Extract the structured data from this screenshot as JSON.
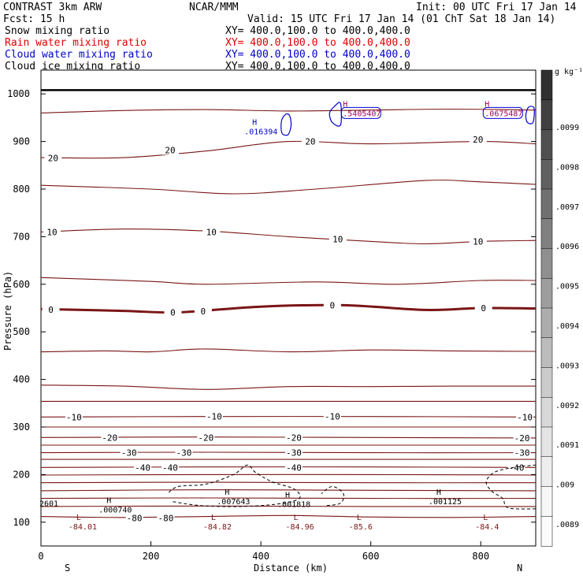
{
  "header": {
    "model": "CONTRAST  3km ARW",
    "org": "NCAR/MMM",
    "init": "Init: 00 UTC Fri 17 Jan 14",
    "fcst": "Fcst:   15 h",
    "valid": "Valid: 15 UTC Fri 17 Jan 14 (01 ChT Sat 18 Jan 14)"
  },
  "fields": [
    {
      "name": "Snow mixing ratio",
      "xy": "XY= 400.0,100.0 to 400.0,400.0",
      "color": "#000000"
    },
    {
      "name": "Rain water mixing ratio",
      "xy": "XY= 400.0,100.0 to 400.0,400.0",
      "color": "#e00000"
    },
    {
      "name": "Cloud water mixing ratio",
      "xy": "XY= 400.0,100.0 to 400.0,400.0",
      "color": "#0000d0"
    },
    {
      "name": "Cloud ice mixing ratio",
      "xy": "XY= 400.0,100.0 to 400.0,400.0",
      "color": "#000000"
    }
  ],
  "colors": {
    "temperature": "#7a1515",
    "cloud_ice": "#000000",
    "cloud_water": "#0000d0",
    "rain": "#a00060"
  },
  "chart_data": {
    "type": "cross-section contour",
    "xlabel": "Distance (km)",
    "ylabel": "Pressure (hPa)",
    "xlim": [
      0,
      900
    ],
    "ylim": [
      1050,
      50
    ],
    "x_ticks": [
      0,
      200,
      400,
      600,
      800
    ],
    "y_ticks": [
      100,
      200,
      300,
      400,
      500,
      600,
      700,
      800,
      900,
      1000
    ],
    "end_labels": {
      "left": "S",
      "right": "N"
    },
    "colorbar": {
      "unit": "g kg⁻¹",
      "tick_labels": [
        ".0099",
        ".0098",
        ".0097",
        ".0096",
        ".0095",
        ".0094",
        ".0093",
        ".0092",
        ".0091",
        ".009",
        ".0089"
      ],
      "colors": [
        "#303030",
        "#404040",
        "#505050",
        "#606060",
        "#707070",
        "#808080",
        "#8f8f8f",
        "#9e9e9e",
        "#adadad",
        "#bcbcbc",
        "#cbcbcb",
        "#d8d8d8",
        "#e4e4e4",
        "#eeeeee",
        "#f6f6f6",
        "#fbfbfb"
      ]
    },
    "surface_pressure": 1008,
    "temperature_contours": [
      {
        "value": "-80",
        "levels": [
          {
            "x": 0,
            "p": 112
          },
          {
            "x": 150,
            "p": 110
          },
          {
            "x": 300,
            "p": 112
          },
          {
            "x": 450,
            "p": 114
          },
          {
            "x": 600,
            "p": 111
          },
          {
            "x": 750,
            "p": 110
          },
          {
            "x": 900,
            "p": 112
          }
        ],
        "labels": [
          {
            "x": 170,
            "p": 109
          },
          {
            "x": 227,
            "p": 109
          }
        ]
      },
      {
        "value": "",
        "levels": [
          {
            "x": 0,
            "p": 133
          },
          {
            "x": 300,
            "p": 134
          },
          {
            "x": 600,
            "p": 133
          },
          {
            "x": 900,
            "p": 133
          }
        ]
      },
      {
        "value": "",
        "levels": [
          {
            "x": 0,
            "p": 150
          },
          {
            "x": 300,
            "p": 151
          },
          {
            "x": 600,
            "p": 150
          },
          {
            "x": 900,
            "p": 150
          }
        ]
      },
      {
        "value": "",
        "levels": [
          {
            "x": 0,
            "p": 166
          },
          {
            "x": 300,
            "p": 168
          },
          {
            "x": 600,
            "p": 167
          },
          {
            "x": 900,
            "p": 166
          }
        ]
      },
      {
        "value": "",
        "levels": [
          {
            "x": 0,
            "p": 183
          },
          {
            "x": 300,
            "p": 184
          },
          {
            "x": 600,
            "p": 183
          },
          {
            "x": 900,
            "p": 183
          }
        ]
      },
      {
        "value": "",
        "levels": [
          {
            "x": 0,
            "p": 199
          },
          {
            "x": 300,
            "p": 200
          },
          {
            "x": 600,
            "p": 200
          },
          {
            "x": 900,
            "p": 199
          }
        ]
      },
      {
        "value": "-40",
        "levels": [
          {
            "x": 0,
            "p": 215
          },
          {
            "x": 300,
            "p": 216
          },
          {
            "x": 600,
            "p": 216
          },
          {
            "x": 900,
            "p": 215
          }
        ],
        "labels": [
          {
            "x": 185,
            "p": 215
          },
          {
            "x": 235,
            "p": 215
          },
          {
            "x": 460,
            "p": 215
          },
          {
            "x": 865,
            "p": 215
          }
        ]
      },
      {
        "value": "",
        "levels": [
          {
            "x": 0,
            "p": 232
          },
          {
            "x": 900,
            "p": 232
          }
        ]
      },
      {
        "value": "-30",
        "levels": [
          {
            "x": 0,
            "p": 246
          },
          {
            "x": 300,
            "p": 247
          },
          {
            "x": 600,
            "p": 246
          },
          {
            "x": 900,
            "p": 246
          }
        ],
        "labels": [
          {
            "x": 160,
            "p": 246
          },
          {
            "x": 260,
            "p": 246
          },
          {
            "x": 460,
            "p": 246
          },
          {
            "x": 875,
            "p": 246
          }
        ]
      },
      {
        "value": "",
        "levels": [
          {
            "x": 0,
            "p": 262
          },
          {
            "x": 900,
            "p": 262
          }
        ]
      },
      {
        "value": "-20",
        "levels": [
          {
            "x": 0,
            "p": 278
          },
          {
            "x": 300,
            "p": 279
          },
          {
            "x": 600,
            "p": 278
          },
          {
            "x": 900,
            "p": 277
          }
        ],
        "labels": [
          {
            "x": 125,
            "p": 278
          },
          {
            "x": 300,
            "p": 278
          },
          {
            "x": 460,
            "p": 278
          },
          {
            "x": 875,
            "p": 277
          }
        ]
      },
      {
        "value": "",
        "levels": [
          {
            "x": 0,
            "p": 300
          },
          {
            "x": 900,
            "p": 300
          }
        ]
      },
      {
        "value": "-10",
        "levels": [
          {
            "x": 0,
            "p": 321
          },
          {
            "x": 300,
            "p": 322
          },
          {
            "x": 600,
            "p": 322
          },
          {
            "x": 900,
            "p": 321
          }
        ],
        "labels": [
          {
            "x": 60,
            "p": 321
          },
          {
            "x": 315,
            "p": 322
          },
          {
            "x": 530,
            "p": 322
          },
          {
            "x": 880,
            "p": 321
          }
        ]
      },
      {
        "value": "",
        "levels": [
          {
            "x": 0,
            "p": 354
          },
          {
            "x": 900,
            "p": 354
          }
        ]
      },
      {
        "value": "",
        "levels": [
          {
            "x": 0,
            "p": 388
          },
          {
            "x": 150,
            "p": 386
          },
          {
            "x": 300,
            "p": 379
          },
          {
            "x": 450,
            "p": 385
          },
          {
            "x": 600,
            "p": 385
          },
          {
            "x": 750,
            "p": 386
          },
          {
            "x": 900,
            "p": 386
          }
        ]
      },
      {
        "value": "",
        "levels": [
          {
            "x": 0,
            "p": 458
          },
          {
            "x": 120,
            "p": 460
          },
          {
            "x": 200,
            "p": 458
          },
          {
            "x": 300,
            "p": 464
          },
          {
            "x": 450,
            "p": 458
          },
          {
            "x": 600,
            "p": 462
          },
          {
            "x": 750,
            "p": 460
          },
          {
            "x": 900,
            "p": 459
          }
        ]
      },
      {
        "value": "0",
        "bold": true,
        "levels": [
          {
            "x": 0,
            "p": 548
          },
          {
            "x": 150,
            "p": 544
          },
          {
            "x": 250,
            "p": 541
          },
          {
            "x": 400,
            "p": 553
          },
          {
            "x": 550,
            "p": 556
          },
          {
            "x": 700,
            "p": 546
          },
          {
            "x": 800,
            "p": 550
          },
          {
            "x": 900,
            "p": 549
          }
        ],
        "labels": [
          {
            "x": 18,
            "p": 547
          },
          {
            "x": 240,
            "p": 541
          },
          {
            "x": 295,
            "p": 543
          },
          {
            "x": 530,
            "p": 556
          },
          {
            "x": 805,
            "p": 550
          }
        ]
      },
      {
        "value": "",
        "levels": [
          {
            "x": 0,
            "p": 614
          },
          {
            "x": 200,
            "p": 606
          },
          {
            "x": 300,
            "p": 600
          },
          {
            "x": 500,
            "p": 605
          },
          {
            "x": 650,
            "p": 600
          },
          {
            "x": 800,
            "p": 608
          },
          {
            "x": 900,
            "p": 608
          }
        ]
      },
      {
        "value": "10",
        "levels": [
          {
            "x": 0,
            "p": 710
          },
          {
            "x": 150,
            "p": 716
          },
          {
            "x": 300,
            "p": 712
          },
          {
            "x": 450,
            "p": 700
          },
          {
            "x": 600,
            "p": 690
          },
          {
            "x": 700,
            "p": 685
          },
          {
            "x": 800,
            "p": 690
          },
          {
            "x": 900,
            "p": 692
          }
        ],
        "labels": [
          {
            "x": 20,
            "p": 710
          },
          {
            "x": 310,
            "p": 710
          },
          {
            "x": 540,
            "p": 695
          },
          {
            "x": 795,
            "p": 690
          }
        ]
      },
      {
        "value": "",
        "levels": [
          {
            "x": 0,
            "p": 808
          },
          {
            "x": 200,
            "p": 800
          },
          {
            "x": 350,
            "p": 790
          },
          {
            "x": 500,
            "p": 800
          },
          {
            "x": 700,
            "p": 818
          },
          {
            "x": 800,
            "p": 815
          },
          {
            "x": 900,
            "p": 810
          }
        ]
      },
      {
        "value": "20",
        "levels": [
          {
            "x": 0,
            "p": 866
          },
          {
            "x": 150,
            "p": 866
          },
          {
            "x": 300,
            "p": 880
          },
          {
            "x": 450,
            "p": 900
          },
          {
            "x": 600,
            "p": 895
          },
          {
            "x": 800,
            "p": 900
          },
          {
            "x": 900,
            "p": 895
          }
        ],
        "labels": [
          {
            "x": 22,
            "p": 865
          },
          {
            "x": 235,
            "p": 882
          },
          {
            "x": 490,
            "p": 900
          },
          {
            "x": 795,
            "p": 904
          }
        ]
      },
      {
        "value": "",
        "levels": [
          {
            "x": 0,
            "p": 960
          },
          {
            "x": 150,
            "p": 965
          },
          {
            "x": 300,
            "p": 967
          },
          {
            "x": 450,
            "p": 964
          },
          {
            "x": 600,
            "p": 966
          },
          {
            "x": 750,
            "p": 968
          },
          {
            "x": 900,
            "p": 966
          }
        ]
      }
    ],
    "highs_lows": [
      {
        "type": "L",
        "value": "-84.01",
        "x": 50,
        "p": 105
      },
      {
        "type": "L",
        "value": "-84.82",
        "x": 295,
        "p": 105
      },
      {
        "type": "L",
        "value": "-84.96",
        "x": 445,
        "p": 105
      },
      {
        "type": "L",
        "value": "-85.6",
        "x": 560,
        "p": 105
      },
      {
        "type": "L",
        "value": "-84.4",
        "x": 790,
        "p": 105
      },
      {
        "type": "H",
        "value": ".000740",
        "x": 105,
        "p": 140
      },
      {
        "type": "H",
        "value": ".007643",
        "x": 320,
        "p": 158
      },
      {
        "type": "H",
        "value": ".001818",
        "x": 430,
        "p": 152
      },
      {
        "type": "H",
        "value": ".001125",
        "x": 705,
        "p": 158
      },
      {
        "type": "H",
        "value": ".016394",
        "x": 370,
        "p": 935
      }
    ],
    "edge_label": {
      "value": "2601",
      "x": 3,
      "p": 140
    },
    "cloud_ice_regions": [
      {
        "points": [
          {
            "x": 240,
            "p": 143
          },
          {
            "x": 290,
            "p": 135
          },
          {
            "x": 360,
            "p": 133
          },
          {
            "x": 430,
            "p": 138
          },
          {
            "x": 470,
            "p": 150
          },
          {
            "x": 460,
            "p": 170
          },
          {
            "x": 420,
            "p": 185
          },
          {
            "x": 390,
            "p": 205
          },
          {
            "x": 375,
            "p": 220
          },
          {
            "x": 350,
            "p": 200
          },
          {
            "x": 300,
            "p": 180
          },
          {
            "x": 250,
            "p": 175
          },
          {
            "x": 230,
            "p": 160
          }
        ]
      },
      {
        "points": [
          {
            "x": 520,
            "p": 135
          },
          {
            "x": 545,
            "p": 140
          },
          {
            "x": 550,
            "p": 160
          },
          {
            "x": 530,
            "p": 175
          },
          {
            "x": 510,
            "p": 160
          }
        ]
      },
      {
        "points": [
          {
            "x": 900,
            "p": 128
          },
          {
            "x": 850,
            "p": 130
          },
          {
            "x": 840,
            "p": 150
          },
          {
            "x": 820,
            "p": 165
          },
          {
            "x": 810,
            "p": 185
          },
          {
            "x": 825,
            "p": 205
          },
          {
            "x": 860,
            "p": 215
          },
          {
            "x": 900,
            "p": 220
          }
        ]
      }
    ],
    "cloud_water_regions": [
      {
        "points": [
          {
            "x": 440,
            "p": 915
          },
          {
            "x": 450,
            "p": 915
          },
          {
            "x": 455,
            "p": 935
          },
          {
            "x": 452,
            "p": 955
          },
          {
            "x": 445,
            "p": 957
          },
          {
            "x": 438,
            "p": 945
          },
          {
            "x": 437,
            "p": 925
          }
        ]
      },
      {
        "points": [
          {
            "x": 545,
            "p": 935
          },
          {
            "x": 530,
            "p": 940
          },
          {
            "x": 525,
            "p": 960
          },
          {
            "x": 535,
            "p": 975
          },
          {
            "x": 545,
            "p": 980
          }
        ]
      },
      {
        "points": [
          {
            "x": 885,
            "p": 940
          },
          {
            "x": 895,
            "p": 940
          },
          {
            "x": 897,
            "p": 970
          },
          {
            "x": 887,
            "p": 972
          },
          {
            "x": 882,
            "p": 955
          }
        ]
      }
    ],
    "surface_clusters": [
      {
        "label": ".5405407",
        "x": 555,
        "p": 960,
        "color": "#a00060"
      },
      {
        "label": ".0675487",
        "x": 813,
        "p": 960,
        "color": "#a00060"
      }
    ]
  }
}
